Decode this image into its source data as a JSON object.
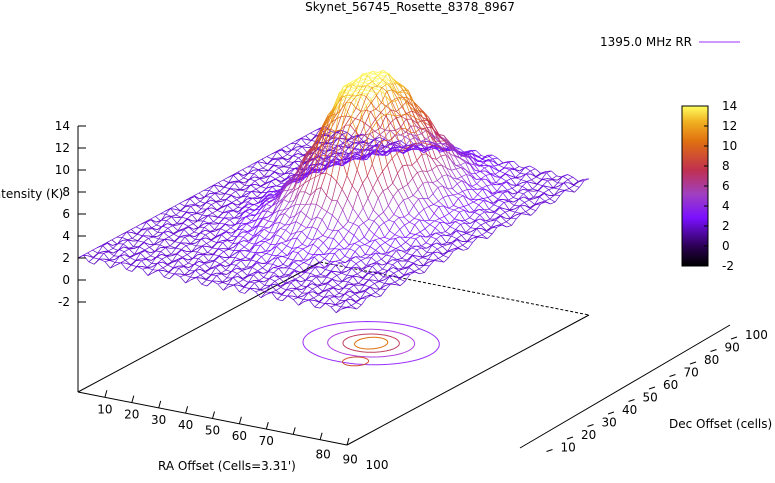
{
  "chart_data": {
    "type": "surface3d",
    "title": "Skynet_56745_Rosette_8378_8967",
    "legend": "1395.0 MHz RR",
    "xlabel": "RA Offset (Cells=3.31')",
    "ylabel": "Dec Offset (cells)",
    "zlabel": "Intensity (K)",
    "xlim": [
      0,
      100
    ],
    "ylim": [
      0,
      100
    ],
    "zlim": [
      -2,
      14
    ],
    "x_ticks": [
      "10",
      "20",
      "30",
      "40",
      "50",
      "60",
      "70",
      "80",
      "90",
      "100"
    ],
    "y_ticks": [
      "10",
      "20",
      "30",
      "40",
      "50",
      "60",
      "70",
      "80",
      "90",
      "100"
    ],
    "z_ticks": [
      "-2",
      "0",
      "2",
      "4",
      "6",
      "8",
      "10",
      "12",
      "14"
    ],
    "colorbar": {
      "range": [
        -2,
        14
      ],
      "ticks": [
        "-2",
        "0",
        "2",
        "4",
        "6",
        "8",
        "10",
        "12",
        "14"
      ]
    },
    "baseline_k": 2,
    "features": [
      {
        "type": "gaussian-peak",
        "x": 55,
        "y": 60,
        "amplitude_k": 13.5
      },
      {
        "type": "gaussian-peak",
        "x": 60,
        "y": 48,
        "amplitude_k": 6.5
      }
    ]
  }
}
